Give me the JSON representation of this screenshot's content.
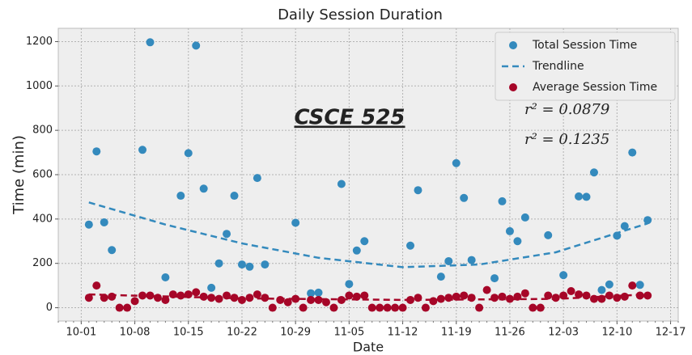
{
  "chart_data": {
    "type": "scatter",
    "title": "Daily Session Duration",
    "xlabel": "Date",
    "ylabel": "Time (min)",
    "xlim": [
      "09-28",
      "12-18"
    ],
    "xticks": [
      "10-01",
      "10-08",
      "10-15",
      "10-22",
      "10-29",
      "11-05",
      "11-12",
      "11-19",
      "11-26",
      "12-03",
      "12-10",
      "12-17"
    ],
    "ylim": [
      -60,
      1260
    ],
    "yticks": [
      0,
      200,
      400,
      600,
      800,
      1000,
      1200
    ],
    "grid": true,
    "legend": "upper right",
    "annotations": [
      "CSCE 525",
      "r² = 0.0879",
      "r² = 0.1235"
    ],
    "series": [
      {
        "name": "Total Session Time",
        "kind": "points",
        "color": "#348ABD",
        "x": [
          "10-02",
          "10-03",
          "10-04",
          "10-05",
          "10-09",
          "10-10",
          "10-12",
          "10-14",
          "10-15",
          "10-16",
          "10-17",
          "10-18",
          "10-19",
          "10-20",
          "10-21",
          "10-22",
          "10-23",
          "10-24",
          "10-25",
          "10-29",
          "10-31",
          "11-01",
          "11-04",
          "11-05",
          "11-06",
          "11-07",
          "11-13",
          "11-14",
          "11-17",
          "11-18",
          "11-19",
          "11-20",
          "11-21",
          "11-24",
          "11-25",
          "11-26",
          "11-27",
          "11-28",
          "12-01",
          "12-03",
          "12-05",
          "12-06",
          "12-07",
          "12-08",
          "12-09",
          "12-10",
          "12-11",
          "12-12",
          "12-13",
          "12-14"
        ],
        "values": [
          375,
          705,
          385,
          260,
          712,
          1197,
          137,
          505,
          697,
          1182,
          537,
          90,
          200,
          333,
          505,
          195,
          185,
          585,
          195,
          383,
          65,
          68,
          558,
          107,
          258,
          300,
          280,
          530,
          140,
          210,
          652,
          495,
          215,
          133,
          480,
          345,
          300,
          407,
          327,
          147,
          502,
          500,
          610,
          80,
          105,
          325,
          368,
          700,
          103,
          395
        ]
      },
      {
        "name": "Trendline",
        "kind": "dashed",
        "color": "#348ABD",
        "x": [
          "10-02",
          "10-12",
          "10-22",
          "11-01",
          "11-12",
          "11-22",
          "12-02",
          "12-14"
        ],
        "values": [
          475,
          375,
          290,
          225,
          183,
          195,
          250,
          380
        ]
      },
      {
        "name": "Average Session Time",
        "kind": "points",
        "color": "#A60628",
        "x": [
          "10-02",
          "10-03",
          "10-04",
          "10-05",
          "10-06",
          "10-07",
          "10-08",
          "10-09",
          "10-10",
          "10-11",
          "10-12",
          "10-13",
          "10-14",
          "10-15",
          "10-16",
          "10-17",
          "10-18",
          "10-19",
          "10-20",
          "10-21",
          "10-22",
          "10-23",
          "10-24",
          "10-25",
          "10-26",
          "10-27",
          "10-28",
          "10-29",
          "10-30",
          "10-31",
          "11-01",
          "11-02",
          "11-03",
          "11-04",
          "11-05",
          "11-06",
          "11-07",
          "11-08",
          "11-09",
          "11-10",
          "11-11",
          "11-12",
          "11-13",
          "11-14",
          "11-15",
          "11-16",
          "11-17",
          "11-18",
          "11-19",
          "11-20",
          "11-21",
          "11-22",
          "11-23",
          "11-24",
          "11-25",
          "11-26",
          "11-27",
          "11-28",
          "11-29",
          "11-30",
          "12-01",
          "12-02",
          "12-03",
          "12-04",
          "12-05",
          "12-06",
          "12-07",
          "12-08",
          "12-09",
          "12-10",
          "12-11",
          "12-12",
          "12-13",
          "12-14"
        ],
        "values": [
          45,
          100,
          45,
          50,
          0,
          0,
          30,
          55,
          55,
          45,
          35,
          60,
          55,
          60,
          70,
          50,
          45,
          40,
          55,
          45,
          35,
          45,
          60,
          45,
          0,
          35,
          25,
          40,
          0,
          35,
          35,
          25,
          0,
          35,
          55,
          50,
          55,
          0,
          0,
          0,
          0,
          0,
          35,
          45,
          0,
          30,
          40,
          45,
          50,
          55,
          45,
          0,
          80,
          45,
          50,
          40,
          50,
          65,
          0,
          0,
          55,
          45,
          55,
          75,
          60,
          55,
          40,
          40,
          55,
          45,
          50,
          100,
          55,
          55
        ]
      },
      {
        "kind": "dashed",
        "color": "#A60628",
        "x": [
          "10-02",
          "10-22",
          "11-12",
          "12-02",
          "12-14"
        ],
        "values": [
          60,
          42,
          35,
          40,
          60
        ]
      }
    ]
  }
}
